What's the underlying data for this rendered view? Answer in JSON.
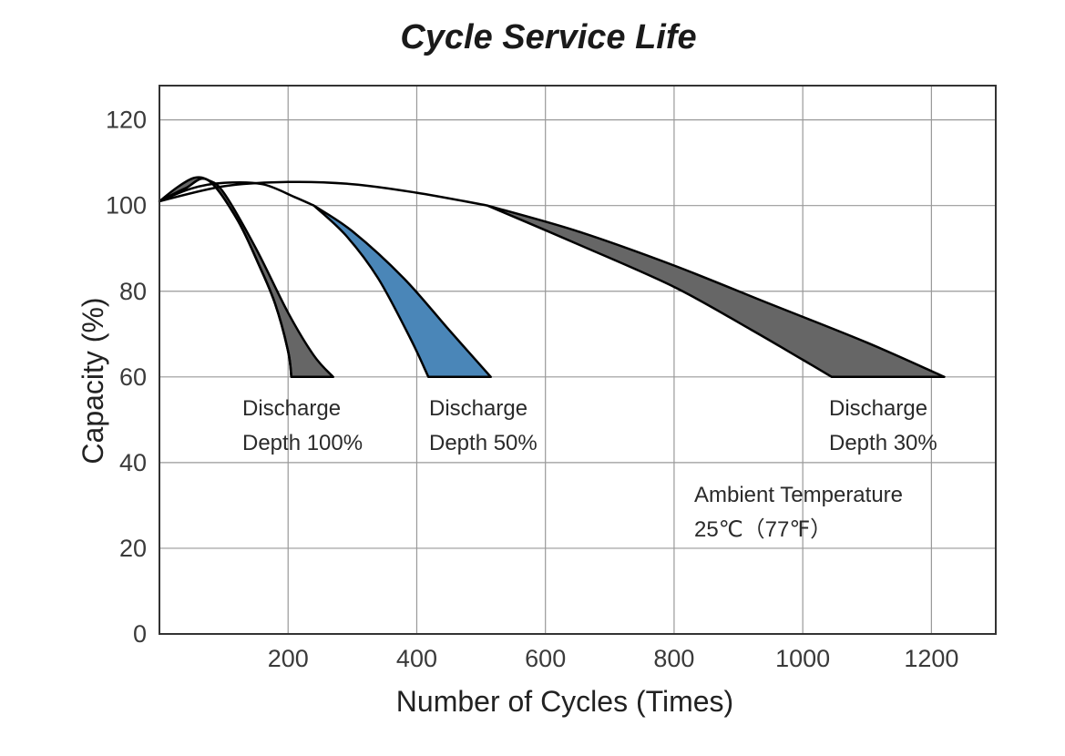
{
  "chart_data": {
    "type": "area",
    "title": "Cycle Service Life",
    "xlabel": "Number of Cycles (Times)",
    "ylabel": "Capacity (%)",
    "xlim": [
      0,
      1300
    ],
    "ylim": [
      0,
      128
    ],
    "x_ticks": [
      200,
      400,
      600,
      800,
      1000,
      1200
    ],
    "y_ticks": [
      0,
      20,
      40,
      60,
      80,
      100,
      120
    ],
    "grid": true,
    "series": [
      {
        "label_lines": [
          "Discharge",
          "Depth 100%"
        ],
        "color": "#666666",
        "upper": [
          [
            0,
            101
          ],
          [
            30,
            104.5
          ],
          [
            55,
            106.5
          ],
          [
            75,
            106
          ],
          [
            100,
            103
          ],
          [
            150,
            90
          ],
          [
            200,
            75
          ],
          [
            240,
            65
          ],
          [
            270,
            60
          ]
        ],
        "lower": [
          [
            0,
            101
          ],
          [
            40,
            104
          ],
          [
            75,
            106
          ],
          [
            120,
            97
          ],
          [
            155,
            86
          ],
          [
            180,
            77
          ],
          [
            200,
            66
          ],
          [
            205,
            60
          ]
        ]
      },
      {
        "label_lines": [
          "Discharge",
          "Depth 50%"
        ],
        "color": "#4a86b8",
        "upper": [
          [
            0,
            101
          ],
          [
            50,
            104
          ],
          [
            100,
            105.3
          ],
          [
            160,
            105
          ],
          [
            210,
            102
          ],
          [
            240,
            100
          ],
          [
            300,
            94
          ],
          [
            380,
            83
          ],
          [
            450,
            71
          ],
          [
            515,
            60
          ]
        ],
        "lower": [
          [
            240,
            100
          ],
          [
            290,
            93
          ],
          [
            340,
            83
          ],
          [
            390,
            69
          ],
          [
            418,
            60
          ]
        ]
      },
      {
        "label_lines": [
          "Discharge",
          "Depth 30%"
        ],
        "color": "#666666",
        "upper": [
          [
            0,
            101
          ],
          [
            100,
            104.5
          ],
          [
            200,
            105.5
          ],
          [
            300,
            105
          ],
          [
            400,
            103
          ],
          [
            510,
            100
          ],
          [
            650,
            94
          ],
          [
            800,
            86
          ],
          [
            950,
            77
          ],
          [
            1100,
            68
          ],
          [
            1220,
            60
          ]
        ],
        "lower": [
          [
            510,
            100
          ],
          [
            650,
            91
          ],
          [
            800,
            81
          ],
          [
            920,
            71
          ],
          [
            1000,
            64
          ],
          [
            1045,
            60
          ]
        ]
      }
    ],
    "annotation_lines": [
      "Ambient Temperature",
      "25℃（77℉）"
    ]
  }
}
